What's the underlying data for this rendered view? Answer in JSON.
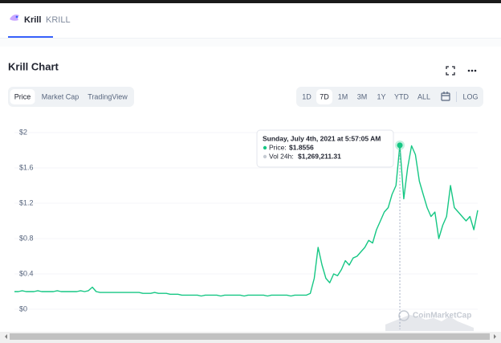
{
  "header": {
    "name": "Krill",
    "symbol": "KRILL"
  },
  "card": {
    "title": "Krill Chart",
    "tabs": [
      "Price",
      "Market Cap",
      "TradingView"
    ],
    "active_tab": 0,
    "ranges": [
      "1D",
      "7D",
      "1M",
      "3M",
      "1Y",
      "YTD",
      "ALL"
    ],
    "active_range": 1,
    "log": "LOG"
  },
  "tooltip": {
    "index": 99,
    "date": "Sunday, July 4th, 2021 at 5:57:05 AM",
    "price_label": "Price:",
    "price": "$1.8556",
    "volume_label": "Vol 24h:",
    "volume": "$1,269,211.31"
  },
  "watermark": "CoinMarketCap",
  "chart_data": {
    "type": "line",
    "color": "#16c784",
    "values": [
      0.2,
      0.2,
      0.21,
      0.2,
      0.2,
      0.2,
      0.21,
      0.2,
      0.2,
      0.2,
      0.2,
      0.21,
      0.2,
      0.2,
      0.2,
      0.2,
      0.2,
      0.21,
      0.2,
      0.21,
      0.25,
      0.2,
      0.19,
      0.19,
      0.19,
      0.19,
      0.19,
      0.19,
      0.19,
      0.19,
      0.19,
      0.19,
      0.19,
      0.18,
      0.18,
      0.18,
      0.19,
      0.18,
      0.18,
      0.18,
      0.17,
      0.17,
      0.17,
      0.16,
      0.16,
      0.16,
      0.16,
      0.16,
      0.15,
      0.16,
      0.16,
      0.16,
      0.16,
      0.15,
      0.16,
      0.16,
      0.16,
      0.16,
      0.16,
      0.15,
      0.16,
      0.16,
      0.16,
      0.16,
      0.16,
      0.15,
      0.16,
      0.16,
      0.16,
      0.16,
      0.16,
      0.15,
      0.16,
      0.16,
      0.16,
      0.16,
      0.18,
      0.35,
      0.7,
      0.5,
      0.35,
      0.3,
      0.4,
      0.38,
      0.45,
      0.55,
      0.5,
      0.58,
      0.6,
      0.65,
      0.7,
      0.78,
      0.75,
      0.9,
      1.0,
      1.1,
      1.15,
      1.3,
      1.4,
      1.8556,
      1.25,
      1.6,
      1.85,
      1.75,
      1.45,
      1.3,
      1.15,
      1.05,
      1.1,
      0.8,
      0.95,
      1.05,
      1.4,
      1.15,
      1.1,
      1.05,
      1.0,
      1.05,
      0.9,
      1.12
    ],
    "ylim": [
      0,
      2
    ],
    "yticks": [
      {
        "value": 0,
        "label": "$0"
      },
      {
        "value": 0.4,
        "label": "$0.4"
      },
      {
        "value": 0.8,
        "label": "$0.8"
      },
      {
        "value": 1.2,
        "label": "$1.2"
      },
      {
        "value": 1.6,
        "label": "$1.6"
      },
      {
        "value": 2,
        "label": "$2"
      }
    ],
    "grid": true
  }
}
